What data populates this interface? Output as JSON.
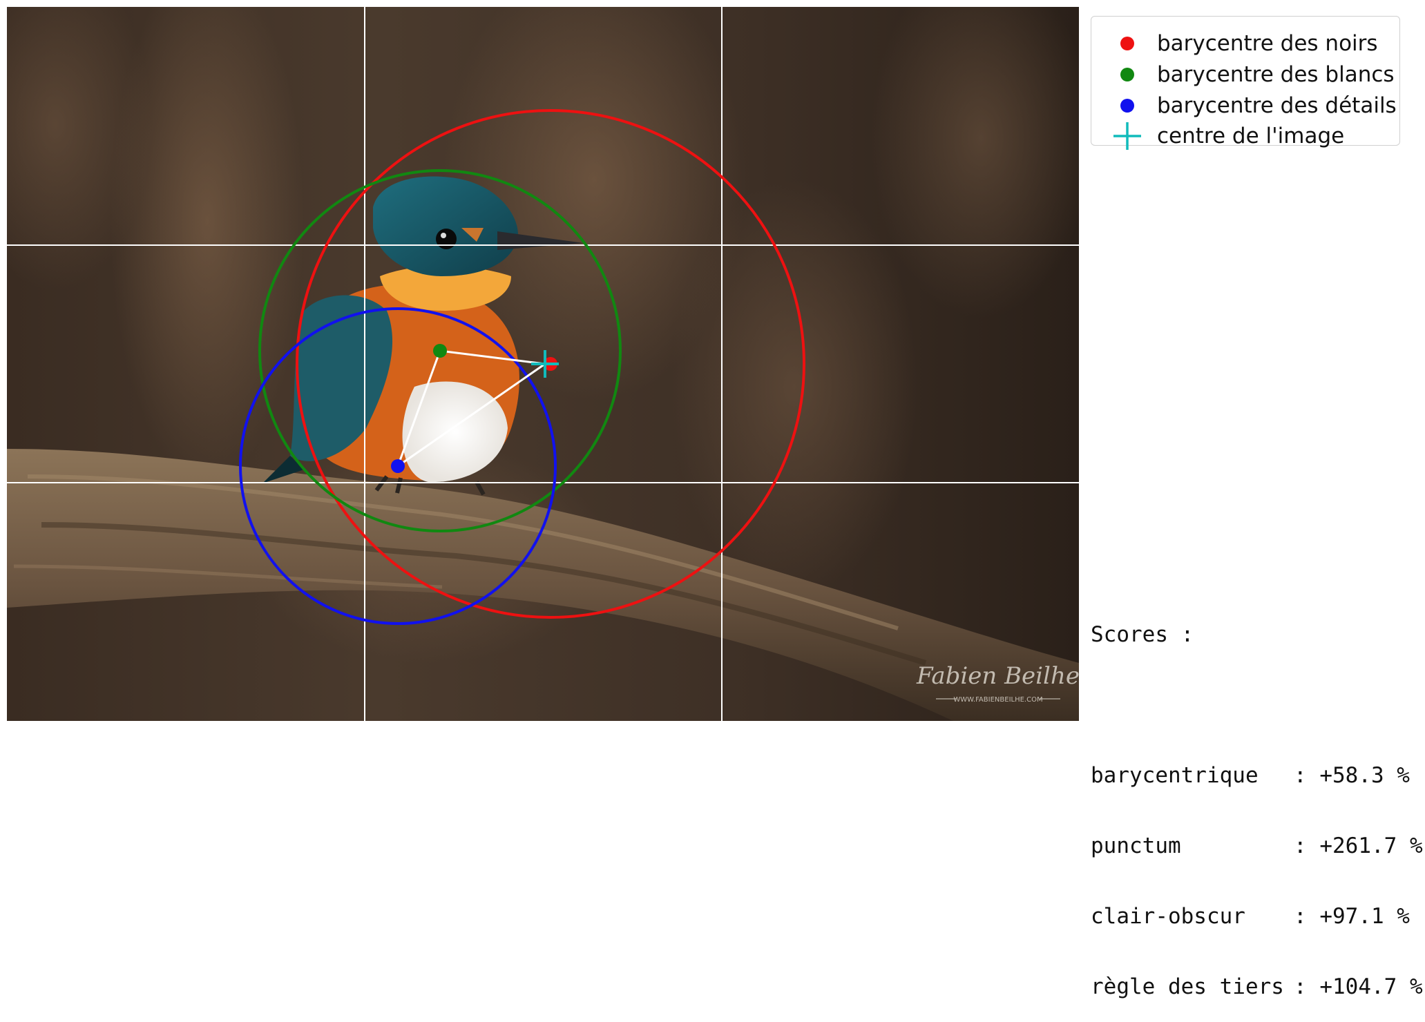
{
  "photo": {
    "subject": "kingfisher-on-branch",
    "watermark": {
      "signature": "Fabien Beilhe",
      "url": "WWW.FABIENBEILHE.COM"
    }
  },
  "colors": {
    "noirs": "#ee1111",
    "blancs": "#118811",
    "details": "#1111ee",
    "centre": "#11bbbb",
    "grid": "#ffffff",
    "links": "#ffffff"
  },
  "legend": [
    {
      "label": "barycentre des noirs",
      "marker": "dot",
      "color": "#ee1111"
    },
    {
      "label": "barycentre des blancs",
      "marker": "dot",
      "color": "#118811"
    },
    {
      "label": "barycentre des détails",
      "marker": "dot",
      "color": "#1111ee"
    },
    {
      "label": "centre de l'image",
      "marker": "plus",
      "color": "#11bbbb"
    }
  ],
  "scores": {
    "title": "Scores :",
    "items": [
      {
        "name": "barycentrique",
        "value": ": +58.3 %"
      },
      {
        "name": "punctum",
        "value": ": +261.7 %"
      },
      {
        "name": "clair-obscur",
        "value": ": +97.1 %"
      },
      {
        "name": "règle des tiers",
        "value": ": +104.7 %"
      }
    ]
  }
}
